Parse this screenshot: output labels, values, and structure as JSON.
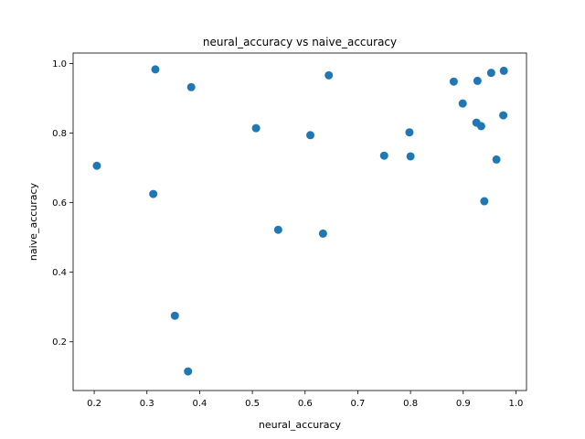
{
  "chart_data": {
    "type": "scatter",
    "title": "neural_accuracy vs naive_accuracy",
    "xlabel": "neural_accuracy",
    "ylabel": "naive_accuracy",
    "xlim": [
      0.16,
      1.02
    ],
    "ylim": [
      0.06,
      1.03
    ],
    "xticks": [
      0.2,
      0.3,
      0.4,
      0.5,
      0.6,
      0.7,
      0.8,
      0.9,
      1.0
    ],
    "xtick_labels": [
      "0.2",
      "0.3",
      "0.4",
      "0.5",
      "0.6",
      "0.7",
      "0.8",
      "0.9",
      "1.0"
    ],
    "yticks": [
      0.2,
      0.4,
      0.6,
      0.8,
      1.0
    ],
    "ytick_labels": [
      "0.2",
      "0.4",
      "0.6",
      "0.8",
      "1.0"
    ],
    "grid": false,
    "legend": "none",
    "marker_color": "#1f77b4",
    "points": [
      {
        "x": 0.205,
        "y": 0.706
      },
      {
        "x": 0.312,
        "y": 0.625
      },
      {
        "x": 0.316,
        "y": 0.983
      },
      {
        "x": 0.353,
        "y": 0.275
      },
      {
        "x": 0.378,
        "y": 0.115
      },
      {
        "x": 0.384,
        "y": 0.932
      },
      {
        "x": 0.507,
        "y": 0.814
      },
      {
        "x": 0.549,
        "y": 0.522
      },
      {
        "x": 0.61,
        "y": 0.794
      },
      {
        "x": 0.634,
        "y": 0.511
      },
      {
        "x": 0.645,
        "y": 0.966
      },
      {
        "x": 0.75,
        "y": 0.735
      },
      {
        "x": 0.798,
        "y": 0.802
      },
      {
        "x": 0.8,
        "y": 0.733
      },
      {
        "x": 0.882,
        "y": 0.948
      },
      {
        "x": 0.899,
        "y": 0.885
      },
      {
        "x": 0.925,
        "y": 0.83
      },
      {
        "x": 0.927,
        "y": 0.95
      },
      {
        "x": 0.934,
        "y": 0.82
      },
      {
        "x": 0.94,
        "y": 0.604
      },
      {
        "x": 0.953,
        "y": 0.973
      },
      {
        "x": 0.963,
        "y": 0.724
      },
      {
        "x": 0.976,
        "y": 0.851
      },
      {
        "x": 0.977,
        "y": 0.979
      }
    ]
  }
}
